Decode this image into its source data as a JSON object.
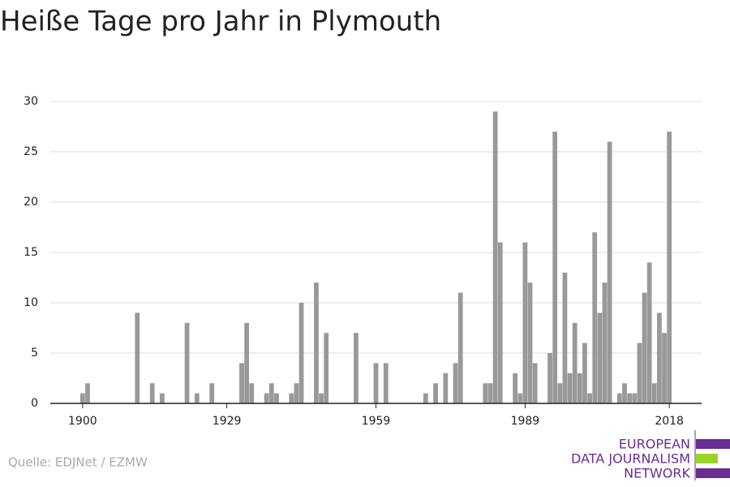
{
  "chart_data": {
    "type": "bar",
    "title": "Heiße Tage pro Jahr in Plymouth",
    "source": "Quelle: EDJNet / EZMW",
    "color": "#999999",
    "grid": true,
    "x": [
      1900,
      1901,
      1902,
      1903,
      1904,
      1905,
      1906,
      1907,
      1908,
      1909,
      1910,
      1911,
      1912,
      1913,
      1914,
      1915,
      1916,
      1917,
      1918,
      1919,
      1920,
      1921,
      1922,
      1923,
      1924,
      1925,
      1926,
      1927,
      1928,
      1929,
      1930,
      1931,
      1932,
      1933,
      1934,
      1935,
      1936,
      1937,
      1938,
      1939,
      1940,
      1941,
      1942,
      1943,
      1944,
      1945,
      1946,
      1947,
      1948,
      1949,
      1950,
      1951,
      1952,
      1953,
      1954,
      1955,
      1956,
      1957,
      1958,
      1959,
      1960,
      1961,
      1962,
      1963,
      1964,
      1965,
      1966,
      1967,
      1968,
      1969,
      1970,
      1971,
      1972,
      1973,
      1974,
      1975,
      1976,
      1977,
      1978,
      1979,
      1980,
      1981,
      1982,
      1983,
      1984,
      1985,
      1986,
      1987,
      1988,
      1989,
      1990,
      1991,
      1992,
      1993,
      1994,
      1995,
      1996,
      1997,
      1998,
      1999,
      2000,
      2001,
      2002,
      2003,
      2004,
      2005,
      2006,
      2007,
      2008,
      2009,
      2010,
      2011,
      2012,
      2013,
      2014,
      2015,
      2016,
      2017,
      2018
    ],
    "values": [
      1,
      2,
      0,
      0,
      0,
      0,
      0,
      0,
      0,
      0,
      0,
      9,
      0,
      0,
      2,
      0,
      1,
      0,
      0,
      0,
      0,
      8,
      0,
      1,
      0,
      0,
      2,
      0,
      0,
      0,
      0,
      0,
      4,
      8,
      2,
      0,
      0,
      1,
      2,
      1,
      0,
      0,
      1,
      2,
      10,
      0,
      0,
      12,
      1,
      7,
      0,
      0,
      0,
      0,
      0,
      7,
      0,
      0,
      0,
      4,
      0,
      4,
      0,
      0,
      0,
      0,
      0,
      0,
      0,
      1,
      0,
      2,
      0,
      3,
      0,
      4,
      11,
      0,
      0,
      0,
      0,
      2,
      2,
      29,
      16,
      0,
      0,
      3,
      1,
      16,
      12,
      4,
      0,
      0,
      5,
      27,
      2,
      13,
      3,
      8,
      3,
      6,
      1,
      17,
      9,
      12,
      26,
      0,
      1,
      2,
      1,
      1,
      6,
      11,
      14,
      2,
      9,
      7,
      27
    ],
    "xlim": [
      1893.5,
      2024.5
    ],
    "xticks": [
      1900,
      1929,
      1959,
      1989,
      2018
    ],
    "ylim": [
      0,
      30
    ],
    "yticks": [
      0,
      5,
      10,
      15,
      20,
      25,
      30
    ]
  },
  "logo": [
    "EUROPEAN",
    "DATA JOURNALISM",
    "NETWORK"
  ]
}
